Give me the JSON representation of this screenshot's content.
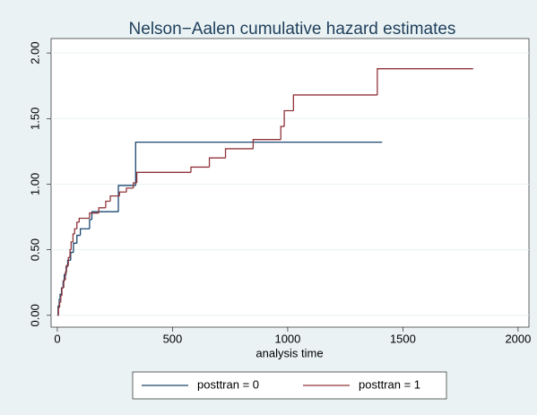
{
  "chart_data": {
    "type": "line",
    "drawstyle": "steps-post",
    "title": "Nelson−Aalen cumulative hazard estimates",
    "x_label": "analysis time",
    "xlim": [
      -27,
      2047
    ],
    "xticks": [
      0,
      500,
      1000,
      1500,
      2000
    ],
    "ylim": [
      -0.09,
      2.11
    ],
    "yticks": [
      {
        "value": 0,
        "label": "0.00"
      },
      {
        "value": 0.5,
        "label": "0.50"
      },
      {
        "value": 1,
        "label": "1.00"
      },
      {
        "value": 1.5,
        "label": "1.50"
      },
      {
        "value": 2,
        "label": "2.00"
      }
    ],
    "grid": true,
    "legend": "bottom",
    "series": [
      {
        "name": "posttran = 0",
        "color": "#1a476f",
        "x": [
          0,
          3,
          8,
          12,
          18,
          25,
          30,
          38,
          45,
          58,
          70,
          85,
          100,
          140,
          150,
          265,
          340,
          1410
        ],
        "values": [
          0,
          0.07,
          0.12,
          0.16,
          0.21,
          0.26,
          0.31,
          0.37,
          0.42,
          0.48,
          0.55,
          0.61,
          0.66,
          0.73,
          0.79,
          0.99,
          1.32,
          1.32
        ]
      },
      {
        "name": "posttran = 1",
        "color": "#90353b",
        "x": [
          0,
          5,
          10,
          15,
          20,
          28,
          35,
          40,
          48,
          55,
          60,
          68,
          75,
          85,
          95,
          140,
          180,
          210,
          230,
          270,
          300,
          330,
          345,
          580,
          660,
          730,
          850,
          970,
          985,
          1025,
          1389,
          1805
        ],
        "values": [
          0,
          0.06,
          0.1,
          0.15,
          0.21,
          0.27,
          0.33,
          0.38,
          0.44,
          0.5,
          0.56,
          0.62,
          0.66,
          0.71,
          0.74,
          0.78,
          0.82,
          0.87,
          0.91,
          0.94,
          0.97,
          1.01,
          1.09,
          1.13,
          1.2,
          1.27,
          1.34,
          1.44,
          1.56,
          1.68,
          1.88,
          1.88
        ]
      }
    ]
  }
}
